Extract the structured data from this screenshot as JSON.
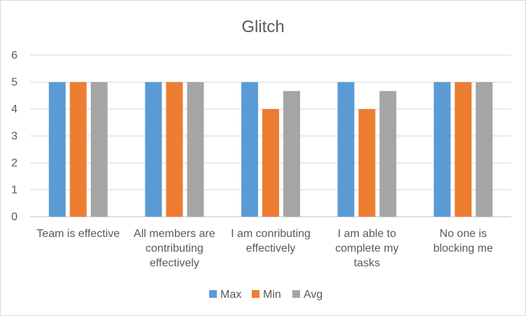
{
  "chart_data": {
    "type": "bar",
    "title": "Glitch",
    "xlabel": "",
    "ylabel": "",
    "ylim": [
      0,
      6
    ],
    "yticks": [
      0,
      1,
      2,
      3,
      4,
      5,
      6
    ],
    "grid": true,
    "legend_position": "bottom",
    "categories": [
      [
        "Team is effective"
      ],
      [
        "All members are",
        "contributing",
        "effectively"
      ],
      [
        "I am conributing",
        "effectively"
      ],
      [
        "I am able to",
        "complete my",
        "tasks"
      ],
      [
        "No one is",
        "blocking me"
      ]
    ],
    "series": [
      {
        "name": "Max",
        "color": "#5b9bd5",
        "values": [
          5,
          5,
          5,
          5,
          5
        ]
      },
      {
        "name": "Min",
        "color": "#ed7d31",
        "values": [
          5,
          5,
          4,
          4,
          5
        ]
      },
      {
        "name": "Avg",
        "color": "#a5a5a5",
        "values": [
          5,
          5,
          4.67,
          4.67,
          5
        ]
      }
    ]
  }
}
